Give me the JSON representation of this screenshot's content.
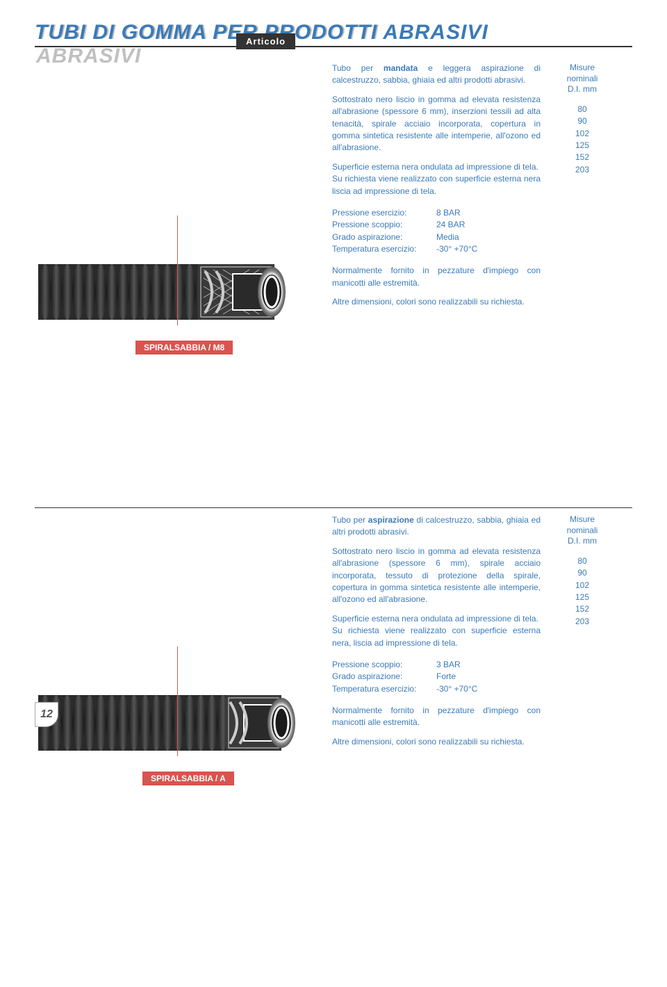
{
  "header": {
    "title": "TUBI DI GOMMA PER PRODOTTI ABRASIVI",
    "articolo": "Articolo"
  },
  "pageNumber": "12",
  "measuresHeader": {
    "line1": "Misure nominali",
    "line2": "D.I. mm"
  },
  "product1": {
    "label": "SPIRALSABBIA / M8",
    "intro": {
      "pre": "Tubo per ",
      "bold": "mandata",
      "post": " e leggera aspirazione di calcestruzzo, sabbia, ghiaia ed altri prodotti abrasivi."
    },
    "body1": "Sottostrato nero liscio in gomma ad elevata resistenza all'abrasione (spessore 6 mm), inserzioni tessili ad alta tenacità, spirale acciaio incorporata, copertura in gomma sintetica resistente alle intemperie, all'ozono ed all'abrasione.",
    "body2": "Superficie esterna nera ondulata ad impressione di tela.",
    "body3": "Su richiesta viene realizzato con superficie esterna nera liscia ad impressione di tela.",
    "specs": [
      {
        "label": "Pressione esercizio:",
        "value": "8 BAR"
      },
      {
        "label": "Pressione scoppio:",
        "value": "24 BAR"
      },
      {
        "label": "Grado aspirazione:",
        "value": "Media"
      },
      {
        "label": "Temperatura esercizio:",
        "value": "-30° +70°C"
      }
    ],
    "note1": "Normalmente fornito in pezzature d'impiego con manicotti alle estremità.",
    "note2": "Altre dimensioni, colori sono realizzabili su richiesta.",
    "measures": [
      "80",
      "90",
      "102",
      "125",
      "152",
      "203"
    ]
  },
  "product2": {
    "label": "SPIRALSABBIA / A",
    "intro": {
      "pre": "Tubo per ",
      "bold": "aspirazione",
      "post": " di calcestruzzo, sabbia, ghiaia ed altri prodotti abrasivi."
    },
    "body1": "Sottostrato nero liscio in gomma ad elevata resistenza all'abrasione (spessore 6 mm), spirale acciaio incorporata, tessuto di protezione della spirale, copertura in gomma sintetica resistente alle intemperie, all'ozono ed all'abrasione.",
    "body2": "Superficie esterna nera ondulata ad impressione di tela.",
    "body3": "Su richiesta viene realizzato con superficie esterna nera, liscia ad impressione di tela.",
    "specs": [
      {
        "label": "Pressione scoppio:",
        "value": "3 BAR"
      },
      {
        "label": "Grado aspirazione:",
        "value": "Forte"
      },
      {
        "label": "Temperatura esercizio:",
        "value": "-30° +70°C"
      }
    ],
    "note1": "Normalmente fornito in pezzature d'impiego con manicotti alle estremità.",
    "note2": "Altre dimensioni, colori sono realizzabili su richiesta.",
    "measures": [
      "80",
      "90",
      "102",
      "125",
      "152",
      "203"
    ]
  },
  "colors": {
    "blue": "#3a7ab8",
    "red": "#d9534f",
    "dark": "#333333",
    "hoseOuter": "#2a2a2a",
    "hoseInner": "#4a4a4a"
  }
}
